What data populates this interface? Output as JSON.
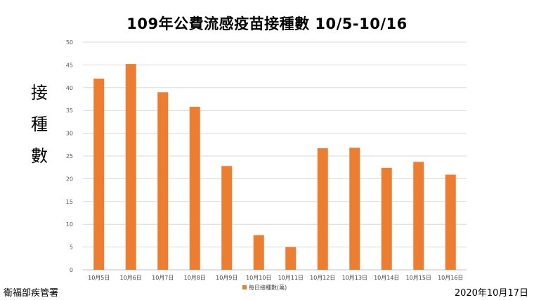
{
  "chart_data": {
    "type": "bar",
    "title": "109年公費流感疫苗接種數 10/5-10/16",
    "ylabel": "接種數",
    "xlabel": "",
    "categories": [
      "10月5日",
      "10月6日",
      "10月7日",
      "10月8日",
      "10月9日",
      "10月10日",
      "10月11日",
      "10月12日",
      "10月13日",
      "10月14日",
      "10月15日",
      "10月16日"
    ],
    "series": [
      {
        "name": "每日接種數(萬)",
        "values": [
          42.0,
          45.2,
          39.0,
          35.8,
          22.8,
          7.6,
          5.0,
          26.7,
          26.8,
          22.4,
          23.7,
          20.9
        ]
      }
    ],
    "ylim": [
      0,
      50
    ],
    "yticks": [
      0,
      5,
      10,
      15,
      20,
      25,
      30,
      35,
      40,
      45,
      50
    ],
    "grid": true,
    "legend": "bottom",
    "bar_color": "#ED7D31"
  },
  "footer": {
    "source": "衛福部疾管署",
    "date": "2020年10月17日"
  }
}
